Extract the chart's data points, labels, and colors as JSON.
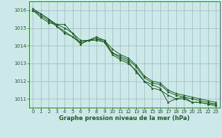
{
  "background_color": "#cce8e8",
  "plot_bg_color": "#cce8e8",
  "grid_color": "#99bbbb",
  "line_color": "#1a5c1a",
  "marker_color": "#1a5c1a",
  "xlabel": "Graphe pression niveau de la mer (hPa)",
  "xlabel_fontsize": 6.0,
  "xlabel_color": "#1a5c1a",
  "xlim": [
    -0.5,
    23.5
  ],
  "ylim": [
    1010.5,
    1016.5
  ],
  "yticks": [
    1011,
    1012,
    1013,
    1014,
    1015,
    1016
  ],
  "xticks": [
    0,
    1,
    2,
    3,
    4,
    5,
    6,
    7,
    8,
    9,
    10,
    11,
    12,
    13,
    14,
    15,
    16,
    17,
    18,
    19,
    20,
    21,
    22,
    23
  ],
  "series": [
    [
      1016.0,
      1015.8,
      1015.5,
      1015.1,
      1014.7,
      1014.5,
      1014.2,
      1014.3,
      1014.3,
      1014.2,
      1013.6,
      1013.3,
      1013.1,
      1012.5,
      1012.0,
      1011.8,
      1011.6,
      1010.8,
      1011.0,
      1011.0,
      1010.8,
      1010.8,
      1010.7,
      1010.7
    ],
    [
      1016.0,
      1015.7,
      1015.4,
      1015.1,
      1014.8,
      1014.5,
      1014.1,
      1014.3,
      1014.4,
      1014.2,
      1013.5,
      1013.2,
      1013.0,
      1012.6,
      1012.0,
      1011.6,
      1011.5,
      1011.2,
      1011.0,
      1011.1,
      1010.8,
      1010.8,
      1010.7,
      1010.6
    ],
    [
      1016.0,
      1015.6,
      1015.3,
      1015.2,
      1015.2,
      1014.7,
      1014.1,
      1014.3,
      1014.4,
      1014.3,
      1013.6,
      1013.4,
      1013.2,
      1012.8,
      1012.2,
      1011.9,
      1011.8,
      1011.4,
      1011.2,
      1011.1,
      1011.0,
      1010.9,
      1010.8,
      1010.7
    ],
    [
      1016.1,
      1015.8,
      1015.5,
      1015.2,
      1015.0,
      1014.7,
      1014.3,
      1014.3,
      1014.5,
      1014.3,
      1013.8,
      1013.5,
      1013.3,
      1012.9,
      1012.3,
      1012.0,
      1011.9,
      1011.5,
      1011.3,
      1011.2,
      1011.1,
      1011.0,
      1010.9,
      1010.8
    ]
  ]
}
